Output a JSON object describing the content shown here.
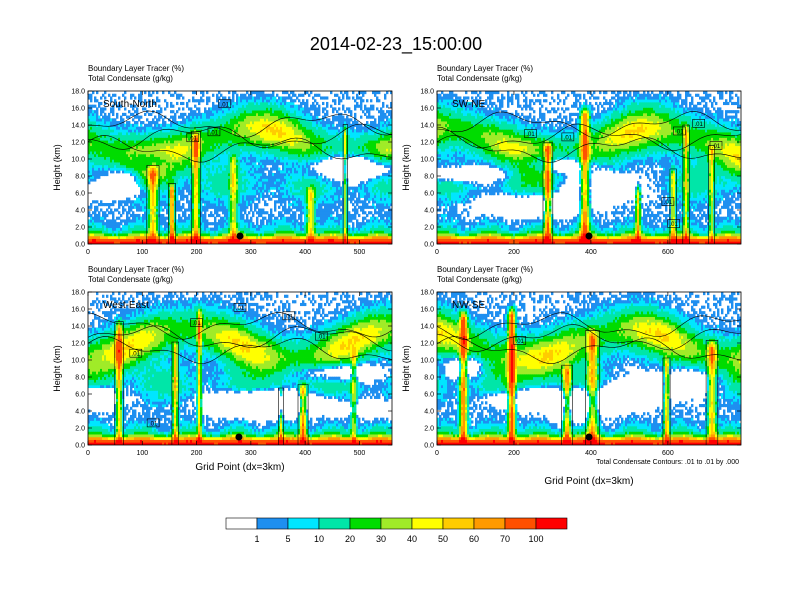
{
  "title": "2014-02-23_15:00:00",
  "colorbar": {
    "levels": [
      "1",
      "5",
      "10",
      "20",
      "30",
      "40",
      "50",
      "60",
      "70",
      "100"
    ],
    "colors": [
      "#ffffff",
      "#1e8ff0",
      "#00e6ff",
      "#00e6a8",
      "#00dc00",
      "#a0eb28",
      "#ffff00",
      "#ffcc00",
      "#ff9a00",
      "#ff5000",
      "#ff0000"
    ]
  },
  "footnote": "Total Condensate Contours: .01 to .01 by .000",
  "chart_data": [
    {
      "type": "heatmap",
      "panel": "South-North",
      "title_line1": "Boundary Layer Tracer   (%)",
      "title_line2": "Total Condensate   (g/kg)",
      "ylabel": "Height (km)",
      "xlabel": "",
      "xlim": [
        0,
        560
      ],
      "ylim": [
        0,
        18
      ],
      "xticks": [
        0,
        100,
        200,
        300,
        400,
        500
      ],
      "yticks": [
        "0.0",
        "2.0",
        "4.0",
        "6.0",
        "8.0",
        "10.0",
        "12.0",
        "14.0",
        "16.0",
        "18.0"
      ],
      "contour_labels": [
        {
          "text": ".01",
          "x": 193,
          "y": 12.5
        },
        {
          "text": ".01",
          "x": 232,
          "y": 13.2
        },
        {
          "text": ".01",
          "x": 252,
          "y": 16.5
        }
      ],
      "marker_x": 280,
      "seed": 11
    },
    {
      "type": "heatmap",
      "panel": "SW-NE",
      "title_line1": "Boundary Layer Tracer   (%)",
      "title_line2": "Total Condensate   (g/kg)",
      "ylabel": "Height (km)",
      "xlabel": "",
      "xlim": [
        0,
        790
      ],
      "ylim": [
        0,
        18
      ],
      "xticks": [
        0,
        200,
        400,
        600
      ],
      "yticks": [
        "0.0",
        "2.0",
        "4.0",
        "6.0",
        "8.0",
        "10.0",
        "12.0",
        "14.0",
        "16.0",
        "18.0"
      ],
      "contour_labels": [
        {
          "text": ".01",
          "x": 243,
          "y": 13.0
        },
        {
          "text": ".01",
          "x": 340,
          "y": 12.6
        },
        {
          "text": ".01",
          "x": 630,
          "y": 13.3
        },
        {
          "text": ".01",
          "x": 680,
          "y": 14.2
        },
        {
          "text": ".01",
          "x": 725,
          "y": 11.6
        },
        {
          "text": ".01",
          "x": 600,
          "y": 5.0
        },
        {
          "text": ".01",
          "x": 615,
          "y": 2.4
        }
      ],
      "marker_x": 395,
      "seed": 23
    },
    {
      "type": "heatmap",
      "panel": "West-East",
      "title_line1": "Boundary Layer Tracer   (%)",
      "title_line2": "Total Condensate   (g/kg)",
      "ylabel": "Height (km)",
      "xlabel": "Grid Point (dx=3km)",
      "xlim": [
        0,
        560
      ],
      "ylim": [
        0,
        18
      ],
      "xticks": [
        0,
        100,
        200,
        300,
        400,
        500
      ],
      "yticks": [
        "0.0",
        "2.0",
        "4.0",
        "6.0",
        "8.0",
        "10.0",
        "12.0",
        "14.0",
        "16.0",
        "18.0"
      ],
      "contour_labels": [
        {
          "text": ".01",
          "x": 88,
          "y": 10.8
        },
        {
          "text": ".01",
          "x": 200,
          "y": 14.4
        },
        {
          "text": ".01",
          "x": 280,
          "y": 16.2
        },
        {
          "text": ".01",
          "x": 370,
          "y": 15.2
        },
        {
          "text": ".01",
          "x": 430,
          "y": 12.8
        },
        {
          "text": ".01",
          "x": 120,
          "y": 2.6
        }
      ],
      "marker_x": 278,
      "seed": 37
    },
    {
      "type": "heatmap",
      "panel": "NW-SE",
      "title_line1": "Boundary Layer Tracer   (%)",
      "title_line2": "Total Condensate   (g/kg)",
      "ylabel": "Height (km)",
      "xlabel": "Grid Point (dx=3km)",
      "xlim": [
        0,
        790
      ],
      "ylim": [
        0,
        18
      ],
      "xticks": [
        0,
        200,
        400,
        600
      ],
      "yticks": [
        "0.0",
        "2.0",
        "4.0",
        "6.0",
        "8.0",
        "10.0",
        "12.0",
        "14.0",
        "16.0",
        "18.0"
      ],
      "contour_labels": [
        {
          "text": ".01",
          "x": 215,
          "y": 12.3
        }
      ],
      "marker_x": 395,
      "seed": 51
    }
  ]
}
